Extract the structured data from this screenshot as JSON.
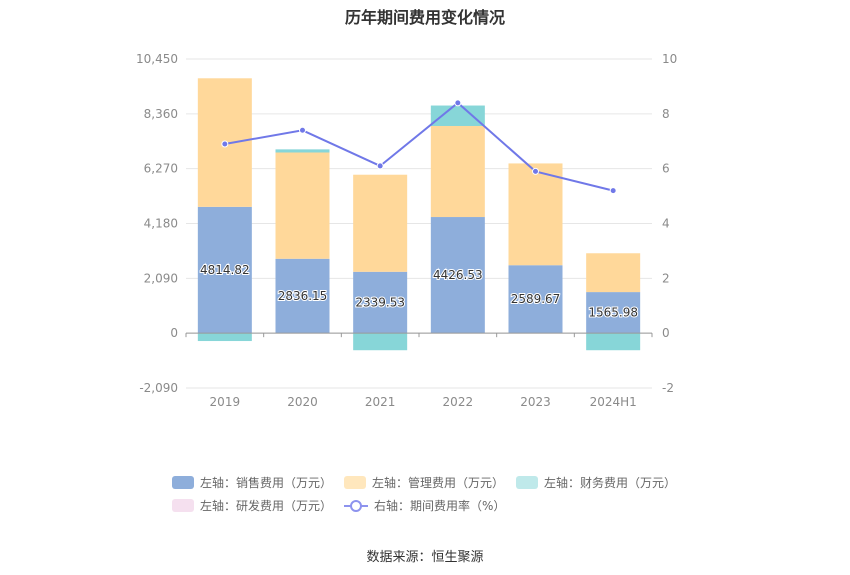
{
  "chart_data": {
    "type": "bar",
    "title": "历年期间费用变化情况",
    "categories": [
      "2019",
      "2020",
      "2021",
      "2022",
      "2023",
      "2024H1"
    ],
    "left_axis": {
      "ticks": [
        "10,450",
        "8,360",
        "6,270",
        "4,180",
        "2,090",
        "0",
        "-2,090"
      ],
      "min": -2090,
      "max": 10450
    },
    "right_axis": {
      "ticks": [
        "10",
        "8",
        "6",
        "4",
        "2",
        "0",
        "-2"
      ],
      "min": -2,
      "max": 10
    },
    "series": [
      {
        "name": "左轴：销售费用（万元）",
        "color": "#8eaedb",
        "values": [
          4814.82,
          2836.15,
          2339.53,
          4426.53,
          2589.67,
          1565.98
        ],
        "labels": [
          "4814.82",
          "2836.15",
          "2339.53",
          "4426.53",
          "2589.67",
          "1565.98"
        ]
      },
      {
        "name": "左轴：管理费用（万元）",
        "color": "#ffd89a",
        "values": [
          4900,
          4050,
          3700,
          3470,
          3880,
          1480
        ]
      },
      {
        "name": "左轴：财务费用（万元）",
        "color": "#87d6d8",
        "values": [
          -300,
          120,
          -650,
          780,
          0,
          -650
        ]
      },
      {
        "name": "左轴：研发费用（万元）",
        "color": "#f0d6ea",
        "values": [
          0,
          0,
          0,
          0,
          0,
          0
        ]
      },
      {
        "name": "右轴：期间费用率（%）",
        "color": "#7078e8",
        "type": "line",
        "axis": "right",
        "values": [
          6.9,
          7.4,
          6.1,
          8.4,
          5.9,
          5.2
        ]
      }
    ]
  },
  "source": "数据来源：恒生聚源"
}
